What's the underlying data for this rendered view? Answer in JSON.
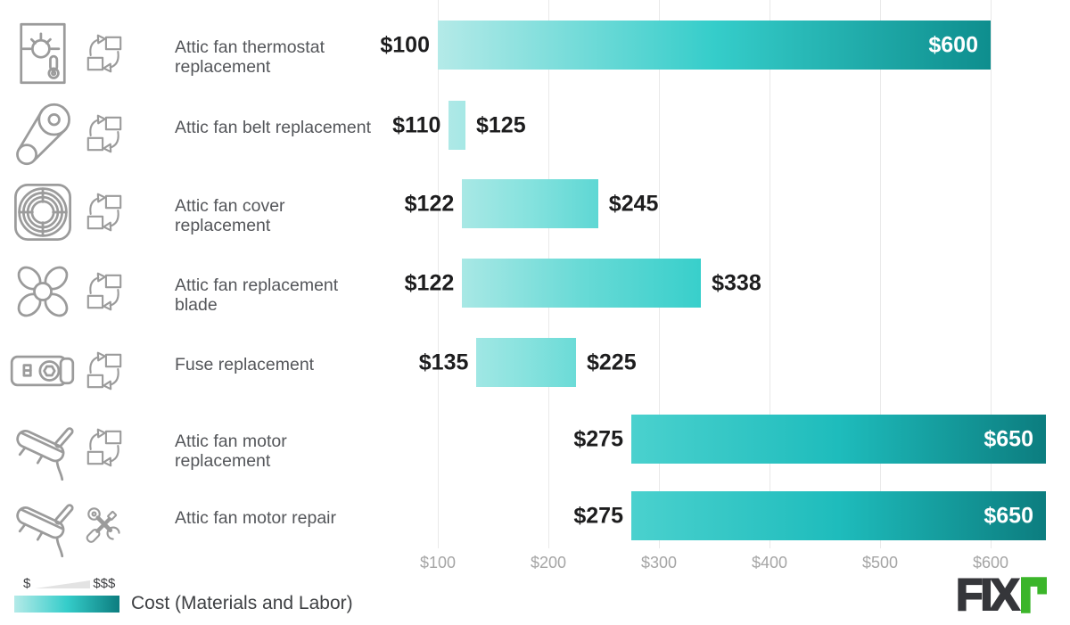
{
  "chart_data": {
    "type": "bar",
    "orientation": "horizontal",
    "title": "",
    "xlabel": "",
    "ylabel": "",
    "value_prefix": "$",
    "x_domain": [
      100,
      660
    ],
    "grid": true,
    "rows": [
      {
        "label": "Attic fan thermostat replacement",
        "icon": "thermostat",
        "action": "replace",
        "min": 100,
        "max": 600,
        "min_label": "$100",
        "max_label": "$600"
      },
      {
        "label": "Attic fan belt replacement",
        "icon": "belt",
        "action": "replace",
        "min": 110,
        "max": 125,
        "min_label": "$110",
        "max_label": "$125"
      },
      {
        "label": "Attic fan cover replacement",
        "icon": "cover",
        "action": "replace",
        "min": 122,
        "max": 245,
        "min_label": "$122",
        "max_label": "$245"
      },
      {
        "label": "Attic fan replacement blade",
        "icon": "blade",
        "action": "replace",
        "min": 122,
        "max": 338,
        "min_label": "$122",
        "max_label": "$338"
      },
      {
        "label": "Fuse replacement",
        "icon": "fuse",
        "action": "replace",
        "min": 135,
        "max": 225,
        "min_label": "$135",
        "max_label": "$225"
      },
      {
        "label": "Attic fan motor replacement",
        "icon": "motor",
        "action": "replace",
        "min": 275,
        "max": 650,
        "min_label": "$275",
        "max_label": "$650"
      },
      {
        "label": "Attic fan motor repair",
        "icon": "motor",
        "action": "repair",
        "min": 275,
        "max": 650,
        "min_label": "$275",
        "max_label": "$650"
      }
    ],
    "x_ticks": [
      {
        "value": 100,
        "label": "$100"
      },
      {
        "value": 200,
        "label": "$200"
      },
      {
        "value": 300,
        "label": "$300"
      },
      {
        "value": 400,
        "label": "$400"
      },
      {
        "value": 500,
        "label": "$500"
      },
      {
        "value": 600,
        "label": "$600"
      }
    ],
    "colormap": [
      {
        "v": 100,
        "c": "#b4eae8"
      },
      {
        "v": 200,
        "c": "#7ce0dc"
      },
      {
        "v": 275,
        "c": "#4ad1ce"
      },
      {
        "v": 338,
        "c": "#38cfcb"
      },
      {
        "v": 450,
        "c": "#1fc0c0"
      },
      {
        "v": 600,
        "c": "#0e8e8e"
      },
      {
        "v": 650,
        "c": "#0c7d7f"
      }
    ],
    "legend": {
      "min_symbol": "$",
      "max_symbol": "$$$",
      "caption": "Cost (Materials and Labor)"
    }
  },
  "logo": {
    "text": "FIX",
    "r_color": "#3bb52a",
    "text_color": "#35363a"
  },
  "colors": {
    "grid": "#e9e9e9",
    "icon_stroke": "#9b9b9b",
    "category_text": "#54565a",
    "value_text": "#1d1d1e",
    "value_text_inside": "#ffffff",
    "axis_text": "#a5a5a5",
    "bar_gradient_light": "#b4eae8",
    "bar_gradient_dark": "#0c7d7f"
  }
}
